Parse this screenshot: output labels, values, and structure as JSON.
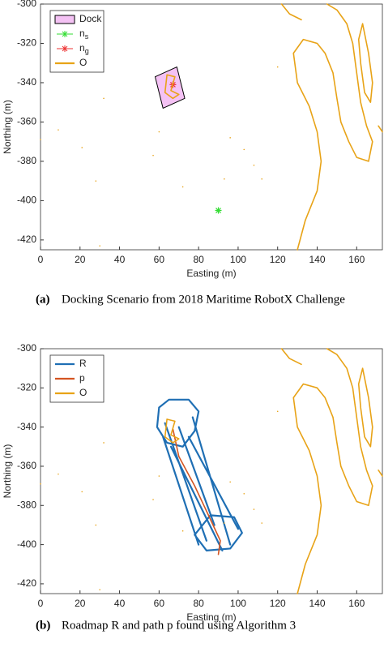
{
  "chart_data": [
    {
      "type": "line",
      "xlabel": "Easting (m)",
      "ylabel": "Northing (m)",
      "xlim": [
        0,
        173
      ],
      "ylim": [
        -425,
        -300
      ],
      "xticks": [
        0,
        20,
        40,
        60,
        80,
        100,
        120,
        140,
        160
      ],
      "yticks": [
        -420,
        -400,
        -380,
        -360,
        -340,
        -320,
        -300
      ],
      "caption_label": "(a)",
      "caption": "Docking Scenario from 2018 Maritime RobotX Challenge",
      "legend": "upper-left",
      "series": [
        {
          "name": "Dock",
          "style": "fill",
          "color": "#f4c2f4",
          "x": [
            58,
            69,
            73,
            62,
            58
          ],
          "y": [
            -337,
            -332,
            -348,
            -353,
            -337
          ]
        },
        {
          "name": "n_s",
          "style": "star",
          "color": "#33dd33",
          "x": [
            90
          ],
          "y": [
            -405
          ]
        },
        {
          "name": "n_g",
          "style": "star",
          "color": "#ee3333",
          "x": [
            67
          ],
          "y": [
            -341
          ]
        },
        {
          "name": "O",
          "style": "line",
          "color": "#e8a317",
          "x": [
            0,
            null,
            9,
            null,
            21,
            null,
            32,
            null,
            28,
            null,
            30,
            null,
            57,
            null,
            60,
            null,
            72,
            null,
            93,
            null,
            96,
            null,
            103,
            null,
            108,
            null,
            112,
            null,
            120,
            null,
            64,
            68,
            66,
            70,
            67,
            63,
            64,
            null,
            145,
            150,
            155,
            158,
            160,
            162,
            165,
            168,
            166,
            160,
            156,
            152,
            150,
            148,
            144,
            140,
            133,
            128,
            130,
            136,
            140,
            142,
            140,
            134,
            130,
            null,
            122,
            126,
            132,
            null,
            163,
            166,
            168,
            167,
            164,
            162,
            161,
            163,
            null,
            171,
            173
          ],
          "y": [
            -369,
            null,
            -364,
            null,
            -373,
            null,
            -348,
            null,
            -390,
            null,
            -423,
            null,
            -377,
            null,
            -365,
            null,
            -393,
            null,
            -389,
            null,
            -368,
            null,
            -374,
            null,
            -382,
            null,
            -389,
            null,
            -332,
            null,
            -336,
            -337,
            -344,
            -346,
            -348,
            -345,
            -336,
            null,
            -300,
            -303,
            -310,
            -320,
            -335,
            -350,
            -362,
            -370,
            -380,
            -378,
            -370,
            -360,
            -348,
            -335,
            -325,
            -320,
            -318,
            -325,
            -340,
            -352,
            -365,
            -380,
            -395,
            -410,
            -425,
            null,
            -300,
            -305,
            -308,
            null,
            -310,
            -325,
            -340,
            -350,
            -345,
            -330,
            -318,
            -310,
            null,
            -362,
            -365
          ]
        }
      ]
    },
    {
      "type": "line",
      "xlabel": "Easting (m)",
      "ylabel": "Northing (m)",
      "xlim": [
        0,
        173
      ],
      "ylim": [
        -425,
        -300
      ],
      "xticks": [
        0,
        20,
        40,
        60,
        80,
        100,
        120,
        140,
        160
      ],
      "yticks": [
        -420,
        -400,
        -380,
        -360,
        -340,
        -320,
        -300
      ],
      "caption_label": "(b)",
      "caption": "Roadmap R and path p found using Algorithm 3",
      "legend": "upper-left",
      "series": [
        {
          "name": "R",
          "style": "line",
          "color": "#1f6fb4",
          "x": [
            60,
            65,
            75,
            80,
            78,
            72,
            64,
            59,
            60,
            null,
            78,
            86,
            98,
            102,
            96,
            84,
            78,
            null,
            62,
            80,
            null,
            75,
            100,
            null,
            66,
            92,
            null,
            70,
            88,
            null,
            63,
            84,
            null,
            77,
            96
          ],
          "y": [
            -330,
            -326,
            -326,
            -332,
            -342,
            -350,
            -348,
            -340,
            -330,
            null,
            -395,
            -385,
            -386,
            -394,
            -402,
            -403,
            -395,
            null,
            -345,
            -400,
            null,
            -345,
            -392,
            null,
            -350,
            -403,
            null,
            -340,
            -390,
            null,
            -338,
            -398,
            null,
            -335,
            -400
          ]
        },
        {
          "name": "p",
          "style": "line",
          "color": "#d45522",
          "x": [
            67,
            70,
            78,
            85,
            91,
            90
          ],
          "y": [
            -341,
            -355,
            -370,
            -385,
            -398,
            -405
          ]
        },
        {
          "name": "O",
          "style": "line",
          "color": "#e8a317",
          "x": [
            0,
            null,
            9,
            null,
            21,
            null,
            32,
            null,
            28,
            null,
            30,
            null,
            57,
            null,
            60,
            null,
            72,
            null,
            93,
            null,
            96,
            null,
            103,
            null,
            108,
            null,
            112,
            null,
            120,
            null,
            64,
            68,
            66,
            70,
            67,
            63,
            64,
            null,
            145,
            150,
            155,
            158,
            160,
            162,
            165,
            168,
            166,
            160,
            156,
            152,
            150,
            148,
            144,
            140,
            133,
            128,
            130,
            136,
            140,
            142,
            140,
            134,
            130,
            null,
            122,
            126,
            132,
            null,
            163,
            166,
            168,
            167,
            164,
            162,
            161,
            163,
            null,
            171,
            173
          ],
          "y": [
            -369,
            null,
            -364,
            null,
            -373,
            null,
            -348,
            null,
            -390,
            null,
            -423,
            null,
            -377,
            null,
            -365,
            null,
            -393,
            null,
            -389,
            null,
            -368,
            null,
            -374,
            null,
            -382,
            null,
            -389,
            null,
            -332,
            null,
            -336,
            -337,
            -344,
            -346,
            -348,
            -345,
            -336,
            null,
            -300,
            -303,
            -310,
            -320,
            -335,
            -350,
            -362,
            -370,
            -380,
            -378,
            -370,
            -360,
            -348,
            -335,
            -325,
            -320,
            -318,
            -325,
            -340,
            -352,
            -365,
            -380,
            -395,
            -410,
            -425,
            null,
            -300,
            -305,
            -308,
            null,
            -310,
            -325,
            -340,
            -350,
            -345,
            -330,
            -318,
            -310,
            null,
            -362,
            -365
          ]
        }
      ]
    }
  ]
}
